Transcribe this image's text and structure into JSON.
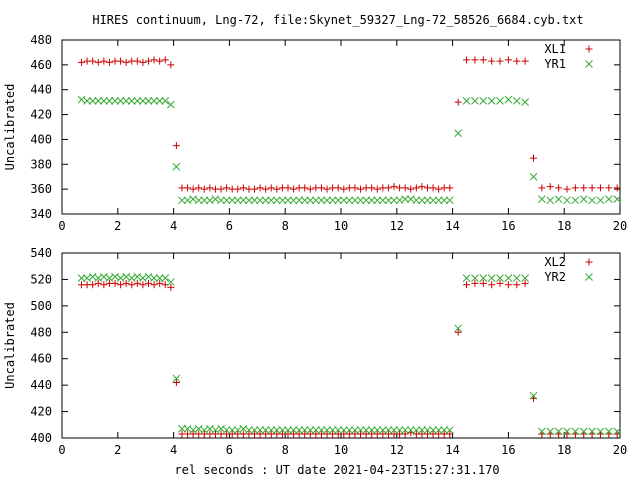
{
  "title": "HIRES continuum, Lng-72, file:Skynet_59327_Lng-72_58526_6684.cyb.txt",
  "xlabel": "rel seconds : UT date 2021-04-23T15:27:31.170",
  "colors": {
    "red": "#cc0000",
    "green": "#33aa33",
    "axis": "#000000"
  },
  "chart_data": [
    {
      "type": "scatter",
      "ylabel": "Uncalibrated",
      "xlim": [
        0,
        20
      ],
      "ylim": [
        340,
        480
      ],
      "xticks": [
        0,
        2,
        4,
        6,
        8,
        10,
        12,
        14,
        16,
        18,
        20
      ],
      "yticks": [
        340,
        360,
        380,
        400,
        420,
        440,
        460,
        480
      ],
      "legend_position": "top-right",
      "series": [
        {
          "name": "XL1",
          "marker": "plus",
          "color": "#cc0000",
          "x": [
            0.7,
            0.9,
            1.1,
            1.3,
            1.5,
            1.7,
            1.9,
            2.1,
            2.3,
            2.5,
            2.7,
            2.9,
            3.1,
            3.3,
            3.5,
            3.7,
            3.9,
            4.1,
            4.3,
            4.5,
            4.7,
            4.9,
            5.1,
            5.3,
            5.5,
            5.7,
            5.9,
            6.1,
            6.3,
            6.5,
            6.7,
            6.9,
            7.1,
            7.3,
            7.5,
            7.7,
            7.9,
            8.1,
            8.3,
            8.5,
            8.7,
            8.9,
            9.1,
            9.3,
            9.5,
            9.7,
            9.9,
            10.1,
            10.3,
            10.5,
            10.7,
            10.9,
            11.1,
            11.3,
            11.5,
            11.7,
            11.9,
            12.1,
            12.3,
            12.5,
            12.7,
            12.9,
            13.1,
            13.3,
            13.5,
            13.7,
            13.9,
            14.2,
            14.5,
            14.8,
            15.1,
            15.4,
            15.7,
            16.0,
            16.3,
            16.6,
            16.9,
            17.2,
            17.5,
            17.8,
            18.1,
            18.4,
            18.7,
            19.0,
            19.3,
            19.6,
            19.9
          ],
          "y": [
            462,
            463,
            463,
            462,
            463,
            462,
            463,
            463,
            462,
            463,
            463,
            462,
            463,
            464,
            463,
            464,
            460,
            395,
            361,
            361,
            360,
            361,
            360,
            361,
            360,
            360,
            361,
            360,
            360,
            361,
            360,
            360,
            361,
            360,
            361,
            360,
            361,
            361,
            360,
            361,
            361,
            360,
            361,
            361,
            360,
            361,
            361,
            360,
            361,
            361,
            360,
            361,
            361,
            360,
            361,
            361,
            362,
            361,
            361,
            360,
            361,
            362,
            361,
            361,
            360,
            361,
            361,
            430,
            464,
            464,
            464,
            463,
            463,
            464,
            463,
            463,
            385,
            361,
            362,
            361,
            360,
            361,
            361,
            361,
            361,
            361,
            361
          ]
        },
        {
          "name": "YR1",
          "marker": "cross",
          "color": "#33aa33",
          "x": [
            0.7,
            0.9,
            1.1,
            1.3,
            1.5,
            1.7,
            1.9,
            2.1,
            2.3,
            2.5,
            2.7,
            2.9,
            3.1,
            3.3,
            3.5,
            3.7,
            3.9,
            4.1,
            4.3,
            4.5,
            4.7,
            4.9,
            5.1,
            5.3,
            5.5,
            5.7,
            5.9,
            6.1,
            6.3,
            6.5,
            6.7,
            6.9,
            7.1,
            7.3,
            7.5,
            7.7,
            7.9,
            8.1,
            8.3,
            8.5,
            8.7,
            8.9,
            9.1,
            9.3,
            9.5,
            9.7,
            9.9,
            10.1,
            10.3,
            10.5,
            10.7,
            10.9,
            11.1,
            11.3,
            11.5,
            11.7,
            11.9,
            12.1,
            12.3,
            12.5,
            12.7,
            12.9,
            13.1,
            13.3,
            13.5,
            13.7,
            13.9,
            14.2,
            14.5,
            14.8,
            15.1,
            15.4,
            15.7,
            16.0,
            16.3,
            16.6,
            16.9,
            17.2,
            17.5,
            17.8,
            18.1,
            18.4,
            18.7,
            19.0,
            19.3,
            19.6,
            19.9
          ],
          "y": [
            432,
            431,
            431,
            431,
            431,
            431,
            431,
            431,
            431,
            431,
            431,
            431,
            431,
            431,
            431,
            431,
            428,
            378,
            351,
            351,
            352,
            351,
            351,
            351,
            352,
            351,
            351,
            351,
            351,
            351,
            351,
            351,
            351,
            351,
            351,
            351,
            351,
            351,
            351,
            351,
            351,
            351,
            351,
            351,
            351,
            351,
            351,
            351,
            351,
            351,
            351,
            351,
            351,
            351,
            351,
            351,
            351,
            351,
            352,
            352,
            351,
            351,
            351,
            351,
            351,
            351,
            351,
            405,
            431,
            431,
            431,
            431,
            431,
            432,
            431,
            430,
            370,
            352,
            351,
            352,
            351,
            351,
            352,
            351,
            351,
            352,
            352
          ]
        }
      ]
    },
    {
      "type": "scatter",
      "ylabel": "Uncalibrated",
      "xlim": [
        0,
        20
      ],
      "ylim": [
        400,
        540
      ],
      "xticks": [
        0,
        2,
        4,
        6,
        8,
        10,
        12,
        14,
        16,
        18,
        20
      ],
      "yticks": [
        400,
        420,
        440,
        460,
        480,
        500,
        520,
        540
      ],
      "legend_position": "top-right",
      "series": [
        {
          "name": "XL2",
          "marker": "plus",
          "color": "#cc0000",
          "x": [
            0.7,
            0.9,
            1.1,
            1.3,
            1.5,
            1.7,
            1.9,
            2.1,
            2.3,
            2.5,
            2.7,
            2.9,
            3.1,
            3.3,
            3.5,
            3.7,
            3.9,
            4.1,
            4.3,
            4.5,
            4.7,
            4.9,
            5.1,
            5.3,
            5.5,
            5.7,
            5.9,
            6.1,
            6.3,
            6.5,
            6.7,
            6.9,
            7.1,
            7.3,
            7.5,
            7.7,
            7.9,
            8.1,
            8.3,
            8.5,
            8.7,
            8.9,
            9.1,
            9.3,
            9.5,
            9.7,
            9.9,
            10.1,
            10.3,
            10.5,
            10.7,
            10.9,
            11.1,
            11.3,
            11.5,
            11.7,
            11.9,
            12.1,
            12.3,
            12.5,
            12.7,
            12.9,
            13.1,
            13.3,
            13.5,
            13.7,
            13.9,
            14.2,
            14.5,
            14.8,
            15.1,
            15.4,
            15.7,
            16.0,
            16.3,
            16.6,
            16.9,
            17.2,
            17.5,
            17.8,
            18.1,
            18.4,
            18.7,
            19.0,
            19.3,
            19.6,
            19.9
          ],
          "y": [
            516,
            516,
            516,
            517,
            516,
            517,
            517,
            516,
            517,
            516,
            517,
            516,
            517,
            516,
            517,
            516,
            514,
            442,
            403,
            403,
            403,
            403,
            403,
            403,
            403,
            403,
            403,
            403,
            403,
            403,
            403,
            403,
            403,
            403,
            403,
            403,
            403,
            403,
            403,
            403,
            403,
            403,
            403,
            403,
            403,
            403,
            403,
            403,
            403,
            403,
            403,
            403,
            403,
            403,
            403,
            403,
            403,
            403,
            403,
            404,
            403,
            403,
            403,
            403,
            403,
            403,
            403,
            480,
            516,
            517,
            517,
            516,
            517,
            516,
            516,
            517,
            430,
            403,
            403,
            403,
            403,
            403,
            403,
            403,
            403,
            403,
            403
          ]
        },
        {
          "name": "YR2",
          "marker": "cross",
          "color": "#33aa33",
          "x": [
            0.7,
            0.9,
            1.1,
            1.3,
            1.5,
            1.7,
            1.9,
            2.1,
            2.3,
            2.5,
            2.7,
            2.9,
            3.1,
            3.3,
            3.5,
            3.7,
            3.9,
            4.1,
            4.3,
            4.5,
            4.7,
            4.9,
            5.1,
            5.3,
            5.5,
            5.7,
            5.9,
            6.1,
            6.3,
            6.5,
            6.7,
            6.9,
            7.1,
            7.3,
            7.5,
            7.7,
            7.9,
            8.1,
            8.3,
            8.5,
            8.7,
            8.9,
            9.1,
            9.3,
            9.5,
            9.7,
            9.9,
            10.1,
            10.3,
            10.5,
            10.7,
            10.9,
            11.1,
            11.3,
            11.5,
            11.7,
            11.9,
            12.1,
            12.3,
            12.5,
            12.7,
            12.9,
            13.1,
            13.3,
            13.5,
            13.7,
            13.9,
            14.2,
            14.5,
            14.8,
            15.1,
            15.4,
            15.7,
            16.0,
            16.3,
            16.6,
            16.9,
            17.2,
            17.5,
            17.8,
            18.1,
            18.4,
            18.7,
            19.0,
            19.3,
            19.6,
            19.9
          ],
          "y": [
            521,
            521,
            522,
            521,
            522,
            521,
            522,
            521,
            522,
            521,
            522,
            521,
            522,
            521,
            521,
            521,
            518,
            445,
            407,
            407,
            406,
            407,
            406,
            407,
            406,
            407,
            406,
            406,
            406,
            407,
            406,
            406,
            406,
            406,
            406,
            406,
            406,
            406,
            406,
            406,
            406,
            406,
            406,
            406,
            406,
            406,
            406,
            406,
            406,
            406,
            406,
            406,
            406,
            406,
            406,
            406,
            406,
            406,
            406,
            406,
            406,
            406,
            406,
            406,
            406,
            406,
            406,
            483,
            521,
            521,
            521,
            521,
            521,
            521,
            521,
            521,
            432,
            405,
            405,
            405,
            405,
            405,
            405,
            405,
            405,
            405,
            405
          ]
        }
      ]
    }
  ]
}
